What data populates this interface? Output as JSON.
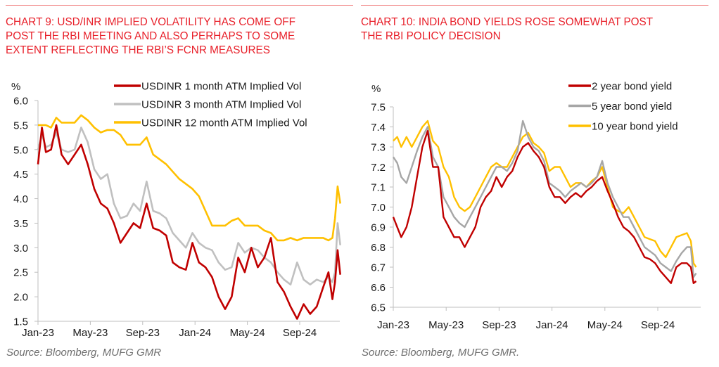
{
  "panels": {
    "left": {
      "title": "CHART 9: USD/INR IMPLIED VOLATILITY HAS COME OFF POST THE RBI MEETING AND ALSO PERHAPS TO SOME EXTENT REFLECTING THE RBI’S FCNR MEASURES",
      "title_lines": [
        "CHART 9: USD/INR IMPLIED VOLATILITY HAS COME OFF",
        "POST THE RBI MEETING AND ALSO PERHAPS TO SOME",
        "EXTENT REFLECTING THE RBI’S FCNR MEASURES"
      ],
      "source": "Source: Bloomberg, MUFG GMR"
    },
    "right": {
      "title": "CHART 10: INDIA BOND YIELDS ROSE SOMEWHAT POST THE RBI POLICY DECISION",
      "title_lines": [
        "CHART 10: INDIA BOND YIELDS ROSE SOMEWHAT POST",
        "THE RBI POLICY DECISION"
      ],
      "source": "Source: Bloomberg, MUFG GMR."
    }
  },
  "chart_data": [
    {
      "type": "line",
      "title": "CHART 9: USD/INR IMPLIED VOLATILITY HAS COME OFF POST THE RBI MEETING AND ALSO PERHAPS TO SOME EXTENT REFLECTING THE RBI’S FCNR MEASURES",
      "xlabel": "",
      "ylabel": "%",
      "ylim": [
        1.5,
        6.0
      ],
      "yticks": [
        "6.0",
        "5.5",
        "5.0",
        "4.5",
        "4.0",
        "3.5",
        "3.0",
        "2.5",
        "2.0",
        "1.5"
      ],
      "ytick_values": [
        6.0,
        5.5,
        5.0,
        4.5,
        4.0,
        3.5,
        3.0,
        2.5,
        2.0,
        1.5
      ],
      "xticks": [
        "Jan-23",
        "May-23",
        "Sep-23",
        "Jan-24",
        "May-24",
        "Sep-24"
      ],
      "xtick_month_index": [
        0,
        4,
        8,
        12,
        16,
        20
      ],
      "x_range_months": [
        0,
        23.1
      ],
      "grid": false,
      "legend_position": "top-right",
      "x": [
        0,
        0.3,
        0.6,
        1,
        1.4,
        1.8,
        2.3,
        2.8,
        3.3,
        3.8,
        4.3,
        4.8,
        5.3,
        5.8,
        6.3,
        6.8,
        7.3,
        7.8,
        8.3,
        8.8,
        9.3,
        9.8,
        10.3,
        10.8,
        11.3,
        11.8,
        12.3,
        12.8,
        13.3,
        13.8,
        14.3,
        14.8,
        15.3,
        15.8,
        16.3,
        16.8,
        17.3,
        17.8,
        18.3,
        18.8,
        19.3,
        19.8,
        20.3,
        20.8,
        21.3,
        21.8,
        22.2,
        22.5,
        22.7,
        22.9,
        23.1
      ],
      "series": [
        {
          "name": "USDINR 1 month ATM Implied Vol",
          "color": "#c00000",
          "values": [
            4.7,
            5.45,
            4.95,
            5.0,
            5.5,
            4.9,
            4.7,
            4.9,
            5.1,
            4.7,
            4.2,
            3.9,
            3.8,
            3.5,
            3.1,
            3.3,
            3.5,
            3.4,
            3.9,
            3.4,
            3.35,
            3.25,
            2.7,
            2.6,
            2.55,
            3.1,
            2.7,
            2.6,
            2.4,
            2.0,
            1.75,
            2.0,
            2.8,
            2.5,
            3.0,
            2.6,
            2.8,
            3.2,
            2.3,
            2.1,
            1.8,
            1.55,
            1.85,
            1.65,
            1.8,
            2.2,
            2.5,
            1.95,
            2.3,
            2.95,
            2.45
          ]
        },
        {
          "name": "USDINR 3 month ATM Implied Vol",
          "color": "#c0c0c0",
          "values": [
            5.0,
            5.3,
            5.05,
            5.1,
            5.35,
            5.0,
            4.95,
            5.0,
            5.45,
            5.15,
            4.6,
            4.4,
            4.5,
            3.9,
            3.6,
            3.65,
            3.9,
            3.75,
            4.35,
            3.75,
            3.7,
            3.6,
            3.3,
            3.15,
            3.0,
            3.3,
            3.1,
            3.0,
            2.95,
            2.7,
            2.55,
            2.6,
            3.1,
            2.9,
            3.0,
            2.95,
            2.8,
            2.7,
            2.5,
            2.35,
            2.25,
            2.7,
            2.35,
            2.25,
            2.35,
            2.3,
            2.4,
            2.3,
            2.5,
            3.5,
            3.05
          ]
        },
        {
          "name": "USDINR 12 month ATM Implied Vol",
          "color": "#ffc000",
          "values": [
            5.5,
            5.5,
            5.5,
            5.45,
            5.65,
            5.55,
            5.55,
            5.55,
            5.7,
            5.6,
            5.45,
            5.35,
            5.4,
            5.4,
            5.3,
            5.1,
            5.1,
            5.1,
            5.25,
            4.9,
            4.8,
            4.7,
            4.55,
            4.4,
            4.3,
            4.2,
            4.05,
            3.75,
            3.45,
            3.45,
            3.45,
            3.55,
            3.6,
            3.45,
            3.45,
            3.45,
            3.35,
            3.3,
            3.15,
            3.15,
            3.2,
            3.15,
            3.2,
            3.2,
            3.2,
            3.2,
            3.15,
            3.2,
            3.6,
            4.25,
            3.9
          ]
        }
      ]
    },
    {
      "type": "line",
      "title": "CHART 10: INDIA BOND YIELDS ROSE SOMEWHAT POST THE RBI POLICY DECISION",
      "xlabel": "",
      "ylabel": "%",
      "ylim": [
        6.5,
        7.5
      ],
      "yticks": [
        "7.5",
        "7.4",
        "7.3",
        "7.2",
        "7.1",
        "7.0",
        "6.9",
        "6.8",
        "6.7",
        "6.6",
        "6.5"
      ],
      "ytick_values": [
        7.5,
        7.4,
        7.3,
        7.2,
        7.1,
        7.0,
        6.9,
        6.8,
        6.7,
        6.6,
        6.5
      ],
      "xticks": [
        "Jan-23",
        "May-23",
        "Sep-23",
        "Jan-24",
        "May-24",
        "Sep-24"
      ],
      "xtick_month_index": [
        0,
        4,
        8,
        12,
        16,
        20
      ],
      "x_range_months": [
        0,
        22.9
      ],
      "grid": false,
      "legend_position": "top-right",
      "x": [
        0,
        0.3,
        0.6,
        1,
        1.4,
        1.8,
        2.2,
        2.6,
        3.0,
        3.4,
        3.8,
        4.2,
        4.6,
        5.0,
        5.4,
        5.8,
        6.2,
        6.6,
        7.0,
        7.4,
        7.8,
        8.2,
        8.6,
        9.0,
        9.4,
        9.8,
        10.2,
        10.6,
        11.0,
        11.4,
        11.8,
        12.2,
        12.6,
        13.0,
        13.4,
        13.8,
        14.2,
        14.6,
        15.0,
        15.4,
        15.8,
        16.2,
        16.6,
        17.0,
        17.4,
        17.8,
        18.2,
        18.6,
        19.0,
        19.4,
        19.8,
        20.2,
        20.6,
        21.0,
        21.4,
        21.8,
        22.2,
        22.5,
        22.7,
        22.9
      ],
      "series": [
        {
          "name": "2 year  bond yield",
          "color": "#c00000",
          "values": [
            6.95,
            6.9,
            6.85,
            6.9,
            7.0,
            7.15,
            7.3,
            7.38,
            7.2,
            7.2,
            6.95,
            6.9,
            6.85,
            6.85,
            6.8,
            6.85,
            6.9,
            7.0,
            7.05,
            7.08,
            7.15,
            7.1,
            7.15,
            7.18,
            7.25,
            7.3,
            7.32,
            7.28,
            7.25,
            7.2,
            7.1,
            7.05,
            7.05,
            7.02,
            7.05,
            7.07,
            7.05,
            7.08,
            7.1,
            7.13,
            7.15,
            7.08,
            7.02,
            6.95,
            6.9,
            6.88,
            6.85,
            6.8,
            6.75,
            6.74,
            6.72,
            6.68,
            6.65,
            6.62,
            6.7,
            6.72,
            6.72,
            6.7,
            6.62,
            6.63
          ]
        },
        {
          "name": "5 year  bond yield",
          "color": "#a6a6a6",
          "values": [
            7.25,
            7.22,
            7.15,
            7.12,
            7.2,
            7.28,
            7.35,
            7.4,
            7.25,
            7.2,
            7.05,
            7.0,
            6.95,
            6.92,
            6.9,
            6.95,
            7.0,
            7.05,
            7.1,
            7.15,
            7.2,
            7.2,
            7.18,
            7.22,
            7.28,
            7.43,
            7.35,
            7.3,
            7.28,
            7.23,
            7.12,
            7.1,
            7.08,
            7.05,
            7.08,
            7.1,
            7.12,
            7.1,
            7.12,
            7.15,
            7.23,
            7.12,
            7.05,
            7.0,
            6.95,
            6.95,
            6.9,
            6.85,
            6.8,
            6.78,
            6.76,
            6.72,
            6.7,
            6.68,
            6.73,
            6.77,
            6.8,
            6.8,
            6.65,
            6.67
          ]
        },
        {
          "name": "10 year  bond yield",
          "color": "#ffc000",
          "values": [
            7.33,
            7.35,
            7.3,
            7.35,
            7.3,
            7.35,
            7.4,
            7.43,
            7.33,
            7.3,
            7.2,
            7.15,
            7.05,
            7.0,
            6.98,
            7.0,
            7.05,
            7.1,
            7.15,
            7.2,
            7.22,
            7.2,
            7.2,
            7.25,
            7.3,
            7.35,
            7.37,
            7.32,
            7.3,
            7.27,
            7.18,
            7.2,
            7.2,
            7.15,
            7.1,
            7.12,
            7.12,
            7.1,
            7.13,
            7.15,
            7.2,
            7.1,
            7.0,
            6.98,
            6.97,
            7.0,
            6.95,
            6.9,
            6.85,
            6.84,
            6.83,
            6.78,
            6.75,
            6.8,
            6.85,
            6.86,
            6.87,
            6.83,
            6.72,
            6.7
          ]
        }
      ]
    }
  ]
}
